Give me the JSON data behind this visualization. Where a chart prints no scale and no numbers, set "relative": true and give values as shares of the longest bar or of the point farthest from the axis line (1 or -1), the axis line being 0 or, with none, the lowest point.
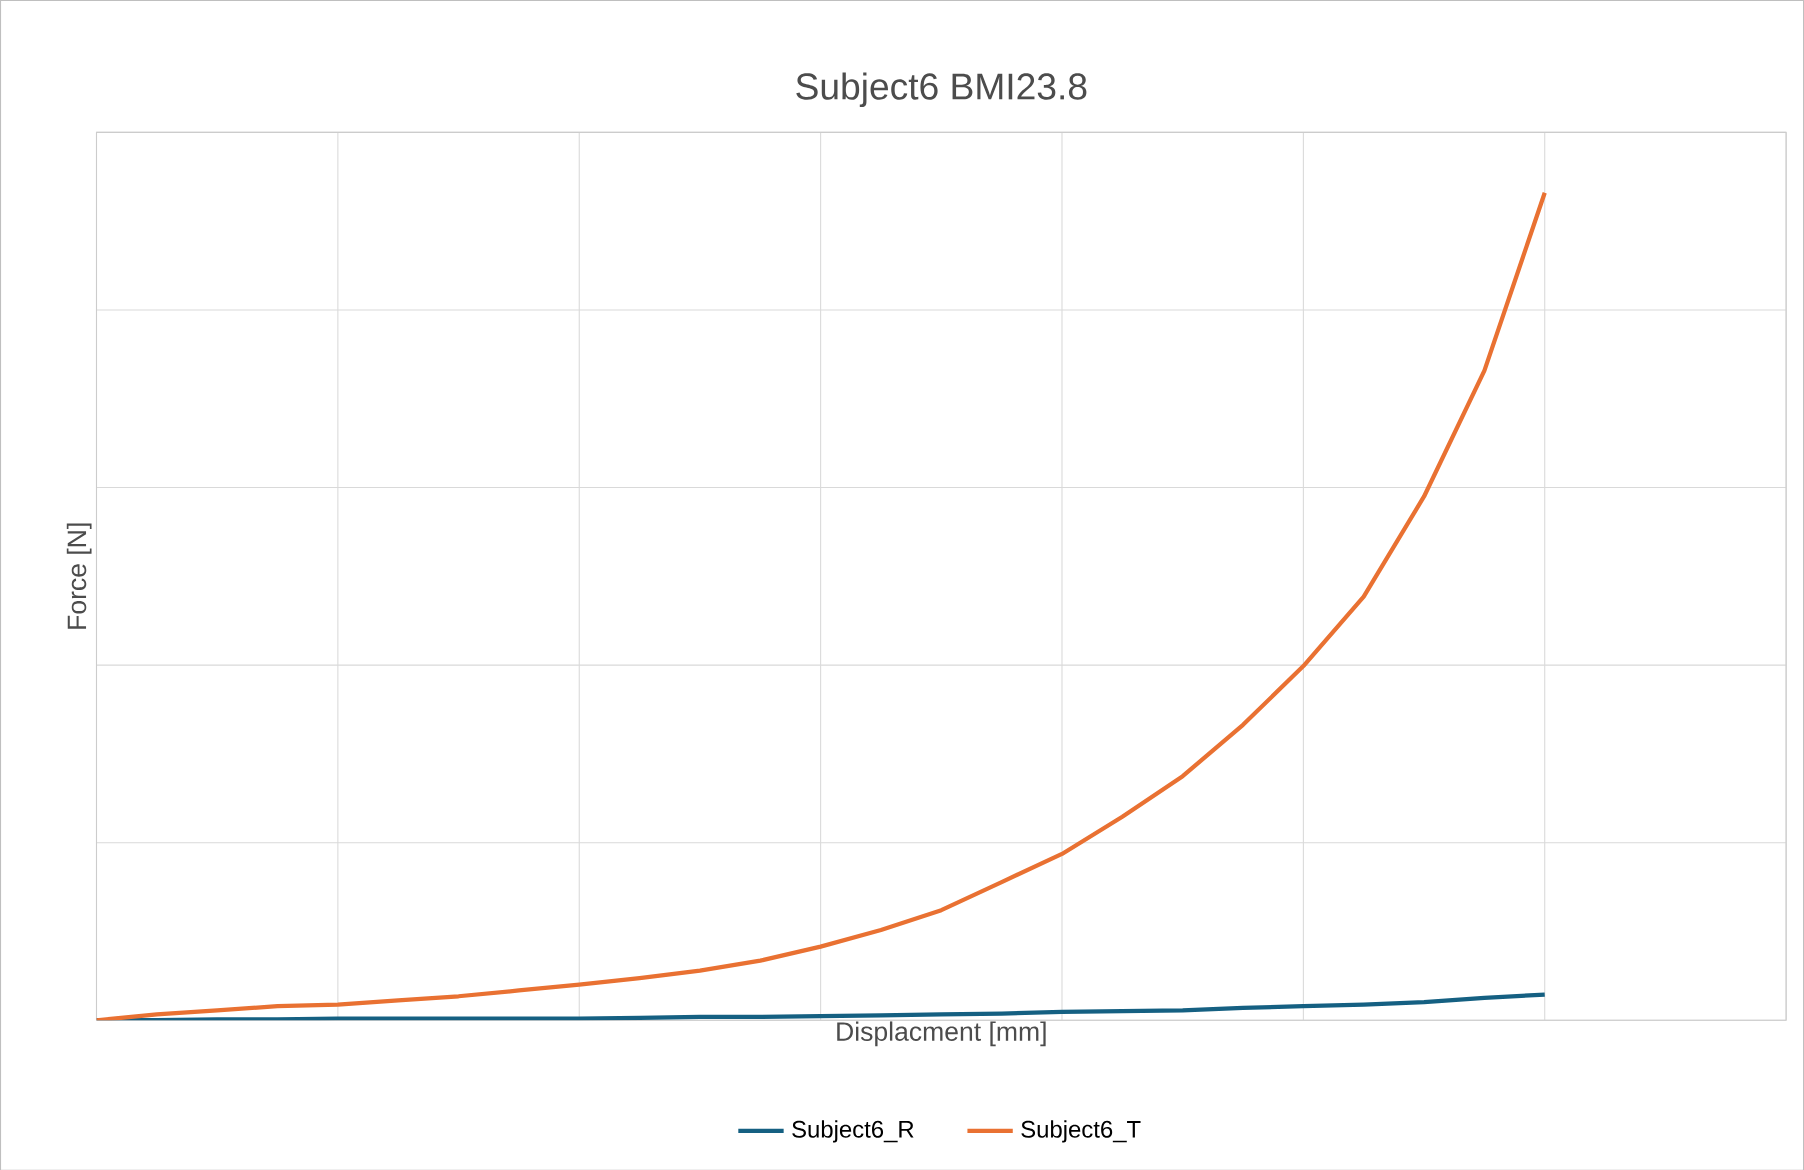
{
  "chart_data": {
    "type": "line",
    "title": "Subject6 BMI23.8",
    "xlabel": "Displacment [mm]",
    "ylabel": "Force [N]",
    "relative": true,
    "grid": true,
    "legend": "bottom",
    "categories": [
      null,
      null,
      null,
      null,
      null,
      null,
      null,
      null,
      null,
      null,
      null,
      null,
      null,
      null,
      null,
      null,
      null,
      null,
      null,
      null,
      null,
      null,
      null,
      null,
      null
    ],
    "series": [
      {
        "name": "Subject6_R",
        "color": "#156082",
        "values": [
          0,
          0,
          0.001,
          0.001,
          0.002,
          0.002,
          0.002,
          0.002,
          0.002,
          0.003,
          0.004,
          0.004,
          0.005,
          0.006,
          0.007,
          0.008,
          0.01,
          0.011,
          0.012,
          0.015,
          0.017,
          0.019,
          0.022,
          0.027,
          0.031
        ]
      },
      {
        "name": "Subject6_T",
        "color": "#e97132",
        "values": [
          0,
          0.007,
          0.012,
          0.017,
          0.019,
          0.024,
          0.029,
          0.036,
          0.043,
          0.051,
          0.06,
          0.072,
          0.089,
          0.109,
          0.133,
          0.167,
          0.201,
          0.246,
          0.295,
          0.357,
          0.428,
          0.512,
          0.633,
          0.785,
          1
        ]
      }
    ]
  }
}
